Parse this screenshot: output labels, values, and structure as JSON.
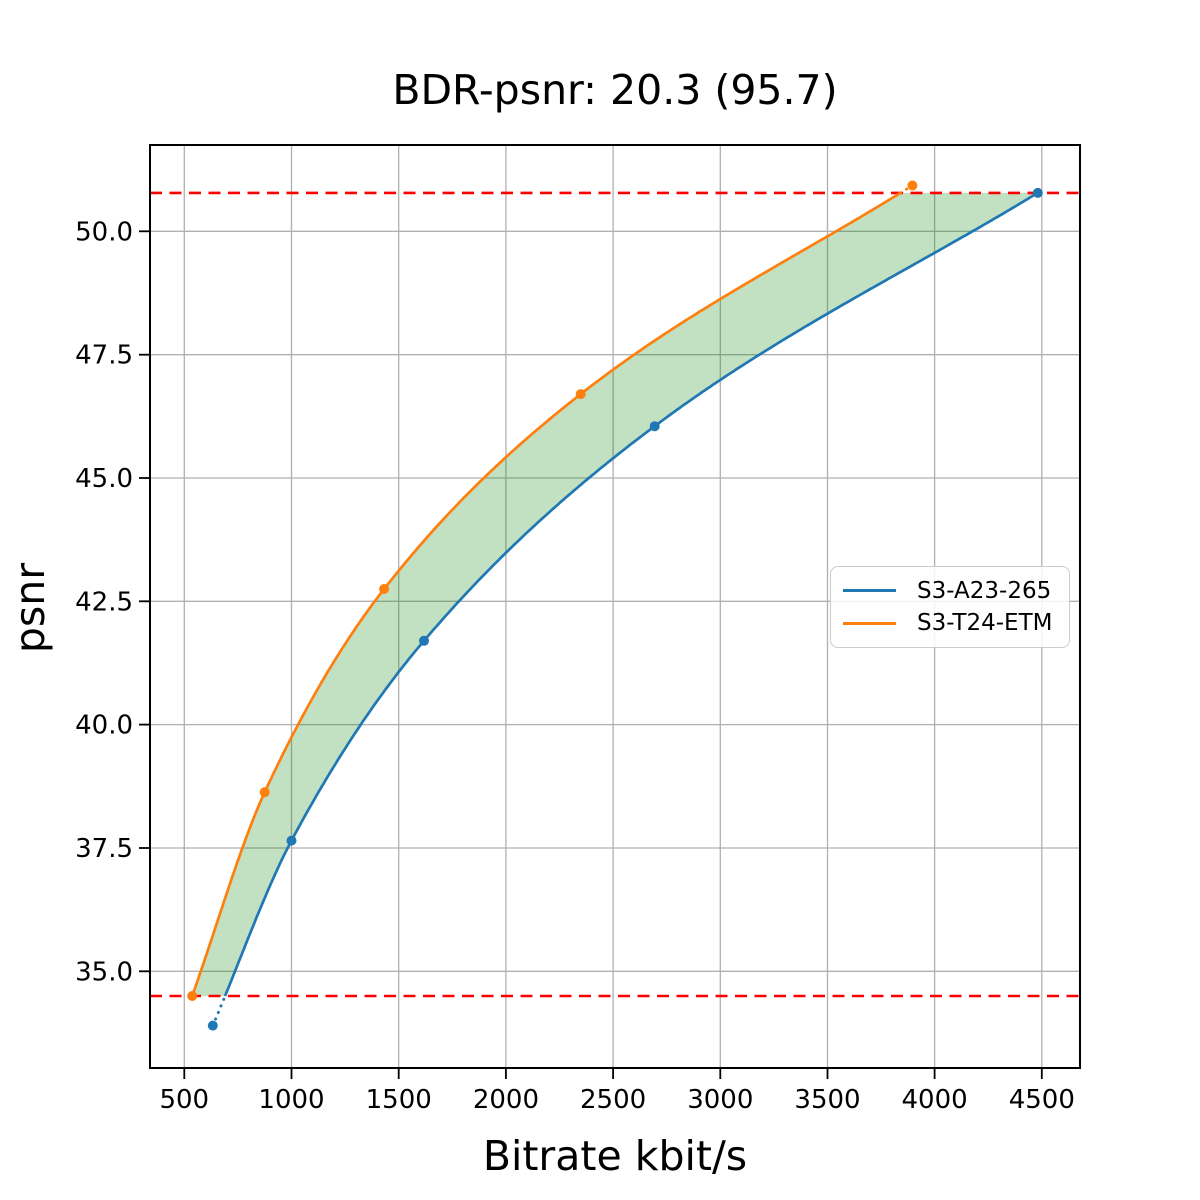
{
  "chart_data": {
    "type": "line",
    "title": "BDR-psnr: 20.3 (95.7)",
    "xlabel": "Bitrate kbit/s",
    "ylabel": "psnr",
    "xlim": [
      340,
      4678
    ],
    "ylim": [
      33.04,
      51.75
    ],
    "xtick_values": [
      500,
      1000,
      1500,
      2000,
      2500,
      3000,
      3500,
      4000,
      4500
    ],
    "xtick_labels": [
      "500",
      "1000",
      "1500",
      "2000",
      "2500",
      "3000",
      "3500",
      "4000",
      "4500"
    ],
    "ytick_values": [
      35.0,
      37.5,
      40.0,
      42.5,
      45.0,
      47.5,
      50.0
    ],
    "ytick_labels": [
      "35.0",
      "37.5",
      "40.0",
      "42.5",
      "45.0",
      "47.5",
      "50.0"
    ],
    "grid": true,
    "grid_color": "#b0b0b0",
    "series": [
      {
        "name": "S3-A23-265",
        "color": "#1f77b4",
        "marker": "circle",
        "x": [
          633,
          1000,
          1618,
          2694,
          4481
        ],
        "y": [
          33.9,
          37.65,
          41.7,
          46.05,
          50.78
        ]
      },
      {
        "name": "S3-T24-ETM",
        "color": "#ff7f0e",
        "marker": "circle",
        "x": [
          537,
          875,
          1432,
          2349,
          3896
        ],
        "y": [
          34.5,
          38.63,
          42.75,
          46.7,
          50.93
        ]
      }
    ],
    "reference_hlines": {
      "color": "#ff0000",
      "style": "dashed",
      "values": [
        34.5,
        50.78
      ]
    },
    "shaded_region": {
      "color": "#008000",
      "alpha": 0.24,
      "between": "series curves",
      "psnr_range": [
        34.5,
        50.78
      ]
    },
    "legend": {
      "position": "center-right",
      "entries": [
        "S3-A23-265",
        "S3-T24-ETM"
      ]
    }
  }
}
